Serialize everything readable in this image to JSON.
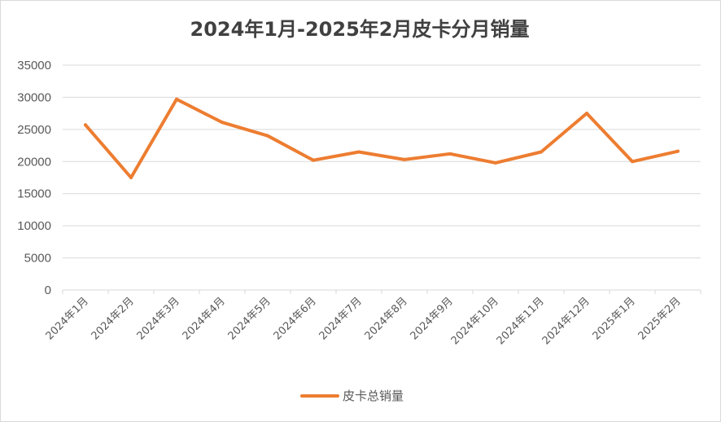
{
  "chart_data": {
    "type": "line",
    "title": "2024年1月-2025年2月皮卡分月销量",
    "xlabel": "",
    "ylabel": "",
    "categories": [
      "2024年1月",
      "2024年2月",
      "2024年3月",
      "2024年4月",
      "2024年5月",
      "2024年6月",
      "2024年7月",
      "2024年8月",
      "2024年9月",
      "2024年10月",
      "2024年11月",
      "2024年12月",
      "2025年1月",
      "2025年2月"
    ],
    "series": [
      {
        "name": "皮卡总销量",
        "color": "#ed7d31",
        "values": [
          25700,
          17500,
          29700,
          26100,
          24000,
          20200,
          21500,
          20300,
          21200,
          19800,
          21500,
          27500,
          20000,
          21600
        ]
      }
    ],
    "ylim": [
      0,
      35000
    ],
    "yticks": [
      0,
      5000,
      10000,
      15000,
      20000,
      25000,
      30000,
      35000
    ],
    "grid": true,
    "legend_position": "bottom"
  }
}
